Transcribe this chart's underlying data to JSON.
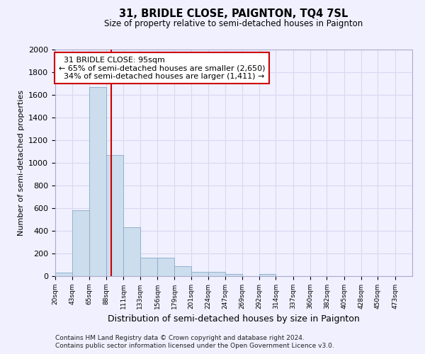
{
  "title": "31, BRIDLE CLOSE, PAIGNTON, TQ4 7SL",
  "subtitle": "Size of property relative to semi-detached houses in Paignton",
  "xlabel": "Distribution of semi-detached houses by size in Paignton",
  "ylabel": "Number of semi-detached properties",
  "footnote1": "Contains HM Land Registry data © Crown copyright and database right 2024.",
  "footnote2": "Contains public sector information licensed under the Open Government Licence v3.0.",
  "bin_labels": [
    "20sqm",
    "43sqm",
    "65sqm",
    "88sqm",
    "111sqm",
    "133sqm",
    "156sqm",
    "179sqm",
    "201sqm",
    "224sqm",
    "247sqm",
    "269sqm",
    "292sqm",
    "314sqm",
    "337sqm",
    "360sqm",
    "382sqm",
    "405sqm",
    "428sqm",
    "450sqm",
    "473sqm"
  ],
  "bar_values": [
    30,
    580,
    1670,
    1070,
    430,
    160,
    160,
    90,
    40,
    40,
    20,
    0,
    20,
    0,
    0,
    0,
    0,
    0,
    0,
    0,
    0
  ],
  "bin_edges": [
    20,
    43,
    65,
    88,
    111,
    133,
    156,
    179,
    201,
    224,
    247,
    269,
    292,
    314,
    337,
    360,
    382,
    405,
    428,
    450,
    473,
    496
  ],
  "property_size": 95,
  "property_label": "31 BRIDLE CLOSE: 95sqm",
  "pct_smaller": 65,
  "n_smaller": 2650,
  "pct_larger": 34,
  "n_larger": 1411,
  "bar_color": "#ccdded",
  "bar_edge_color": "#88aac8",
  "vline_color": "#cc0000",
  "annotation_box_color": "#cc0000",
  "ylim": [
    0,
    2000
  ],
  "yticks": [
    0,
    200,
    400,
    600,
    800,
    1000,
    1200,
    1400,
    1600,
    1800,
    2000
  ],
  "background_color": "#f0f0ff",
  "grid_color": "#d8d8f0"
}
